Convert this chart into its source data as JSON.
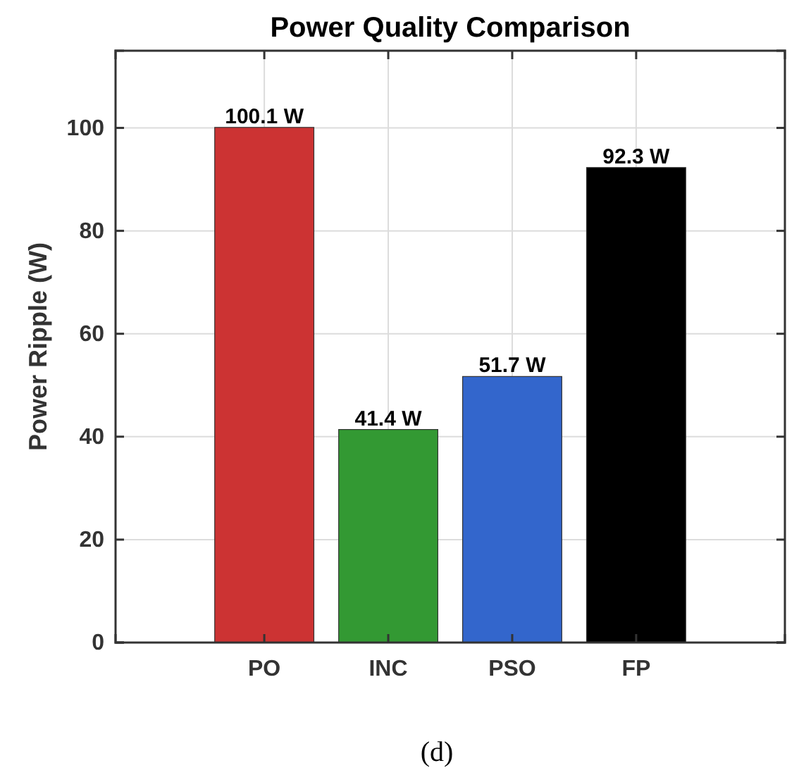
{
  "chart_data": {
    "type": "bar",
    "title": "Power Quality Comparison",
    "ylabel": "Power Ripple (W)",
    "categories": [
      "PO",
      "INC",
      "PSO",
      "FP"
    ],
    "values": [
      100.1,
      41.4,
      51.7,
      92.3
    ],
    "colors": [
      "#cc3333",
      "#339933",
      "#3366cc",
      "#000000"
    ],
    "value_labels": [
      "100.1 W",
      "41.4 W",
      "51.7 W",
      "92.3 W"
    ],
    "ylim": [
      0,
      115
    ],
    "yticks": [
      0,
      20,
      40,
      60,
      80,
      100
    ],
    "grid": true,
    "annotations": [
      "(d)"
    ]
  }
}
